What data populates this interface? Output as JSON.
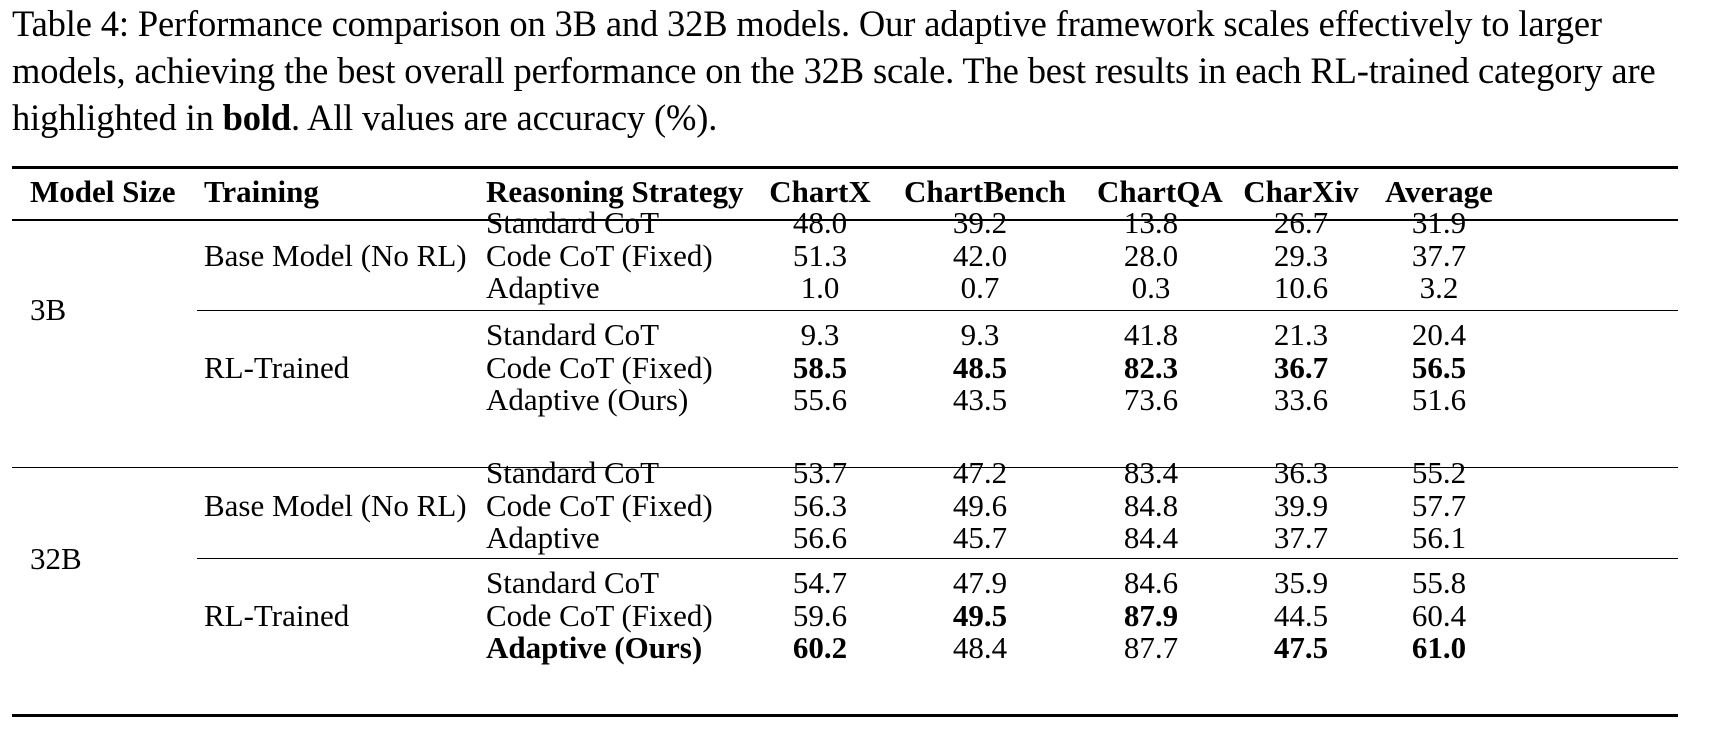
{
  "caption": {
    "label": "Table 4:",
    "text_part1": " Performance comparison on 3B and 32B models. Our adaptive framework scales effectively to larger models, achieving the best overall performance on the 32B scale. The best results in each RL-trained category are highlighted in ",
    "bold_word": "bold",
    "text_part2": ". All values are accuracy (%)."
  },
  "table": {
    "headers": [
      "Model Size",
      "Training",
      "Reasoning Strategy",
      "ChartX",
      "ChartBench",
      "ChartQA",
      "CharXiv",
      "Average"
    ],
    "groups": [
      {
        "model_size": "3B",
        "trainings": [
          {
            "name": "Base Model (No RL)",
            "rows": [
              {
                "strategy": "Standard CoT",
                "values": [
                  "48.0",
                  "39.2",
                  "13.8",
                  "26.7",
                  "31.9"
                ],
                "bold": [
                  false,
                  false,
                  false,
                  false,
                  false
                ]
              },
              {
                "strategy": "Code CoT (Fixed)",
                "values": [
                  "51.3",
                  "42.0",
                  "28.0",
                  "29.3",
                  "37.7"
                ],
                "bold": [
                  false,
                  false,
                  false,
                  false,
                  false
                ]
              },
              {
                "strategy": "Adaptive",
                "values": [
                  "1.0",
                  "0.7",
                  "0.3",
                  "10.6",
                  "3.2"
                ],
                "bold": [
                  false,
                  false,
                  false,
                  false,
                  false
                ]
              }
            ]
          },
          {
            "name": "RL-Trained",
            "rows": [
              {
                "strategy": "Standard CoT",
                "values": [
                  "9.3",
                  "9.3",
                  "41.8",
                  "21.3",
                  "20.4"
                ],
                "bold": [
                  false,
                  false,
                  false,
                  false,
                  false
                ]
              },
              {
                "strategy": "Code CoT (Fixed)",
                "values": [
                  "58.5",
                  "48.5",
                  "82.3",
                  "36.7",
                  "56.5"
                ],
                "bold": [
                  true,
                  true,
                  true,
                  true,
                  true
                ]
              },
              {
                "strategy": "Adaptive (Ours)",
                "values": [
                  "55.6",
                  "43.5",
                  "73.6",
                  "33.6",
                  "51.6"
                ],
                "bold": [
                  false,
                  false,
                  false,
                  false,
                  false
                ]
              }
            ]
          }
        ]
      },
      {
        "model_size": "32B",
        "trainings": [
          {
            "name": "Base Model (No RL)",
            "rows": [
              {
                "strategy": "Standard CoT",
                "values": [
                  "53.7",
                  "47.2",
                  "83.4",
                  "36.3",
                  "55.2"
                ],
                "bold": [
                  false,
                  false,
                  false,
                  false,
                  false
                ]
              },
              {
                "strategy": "Code CoT (Fixed)",
                "values": [
                  "56.3",
                  "49.6",
                  "84.8",
                  "39.9",
                  "57.7"
                ],
                "bold": [
                  false,
                  false,
                  false,
                  false,
                  false
                ]
              },
              {
                "strategy": "Adaptive",
                "values": [
                  "56.6",
                  "45.7",
                  "84.4",
                  "37.7",
                  "56.1"
                ],
                "bold": [
                  false,
                  false,
                  false,
                  false,
                  false
                ]
              }
            ]
          },
          {
            "name": "RL-Trained",
            "rows": [
              {
                "strategy": "Standard CoT",
                "values": [
                  "54.7",
                  "47.9",
                  "84.6",
                  "35.9",
                  "55.8"
                ],
                "bold": [
                  false,
                  false,
                  false,
                  false,
                  false
                ]
              },
              {
                "strategy": "Code CoT (Fixed)",
                "values": [
                  "59.6",
                  "49.5",
                  "87.9",
                  "44.5",
                  "60.4"
                ],
                "bold": [
                  false,
                  true,
                  true,
                  false,
                  false
                ]
              },
              {
                "strategy": "Adaptive (Ours)",
                "strategy_bold": true,
                "values": [
                  "60.2",
                  "48.4",
                  "87.7",
                  "47.5",
                  "61.0"
                ],
                "bold": [
                  true,
                  false,
                  false,
                  true,
                  true
                ]
              }
            ]
          }
        ]
      }
    ]
  }
}
